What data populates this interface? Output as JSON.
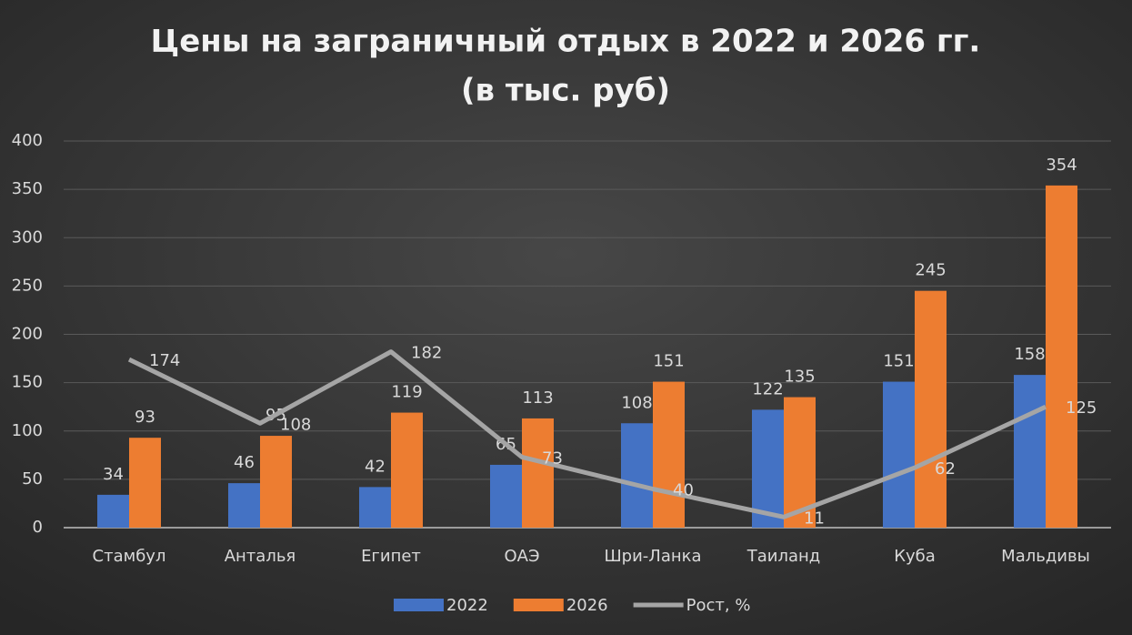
{
  "chart_data": {
    "type": "bar",
    "title_lines": [
      "Цены на заграничный отдых в 2022 и 2026 гг.",
      "(в тыс. руб)"
    ],
    "categories": [
      "Стамбул",
      "Анталья",
      "Египет",
      "ОАЭ",
      "Шри-Ланка",
      "Таиланд",
      "Куба",
      "Мальдивы"
    ],
    "series": [
      {
        "name": "2022",
        "color": "#4472c4",
        "values": [
          34,
          46,
          42,
          65,
          108,
          122,
          151,
          158
        ]
      },
      {
        "name": "2026",
        "color": "#ed7d31",
        "values": [
          93,
          95,
          119,
          113,
          151,
          135,
          245,
          354
        ]
      },
      {
        "name": "Рост, %",
        "color": "#a5a5a5",
        "type": "line",
        "values": [
          174,
          108,
          182,
          73,
          40,
          11,
          62,
          125
        ]
      }
    ],
    "ylim": [
      0,
      400
    ],
    "yticks": [
      0,
      50,
      100,
      150,
      200,
      250,
      300,
      350,
      400
    ],
    "grid": true,
    "legend": "bottom"
  }
}
